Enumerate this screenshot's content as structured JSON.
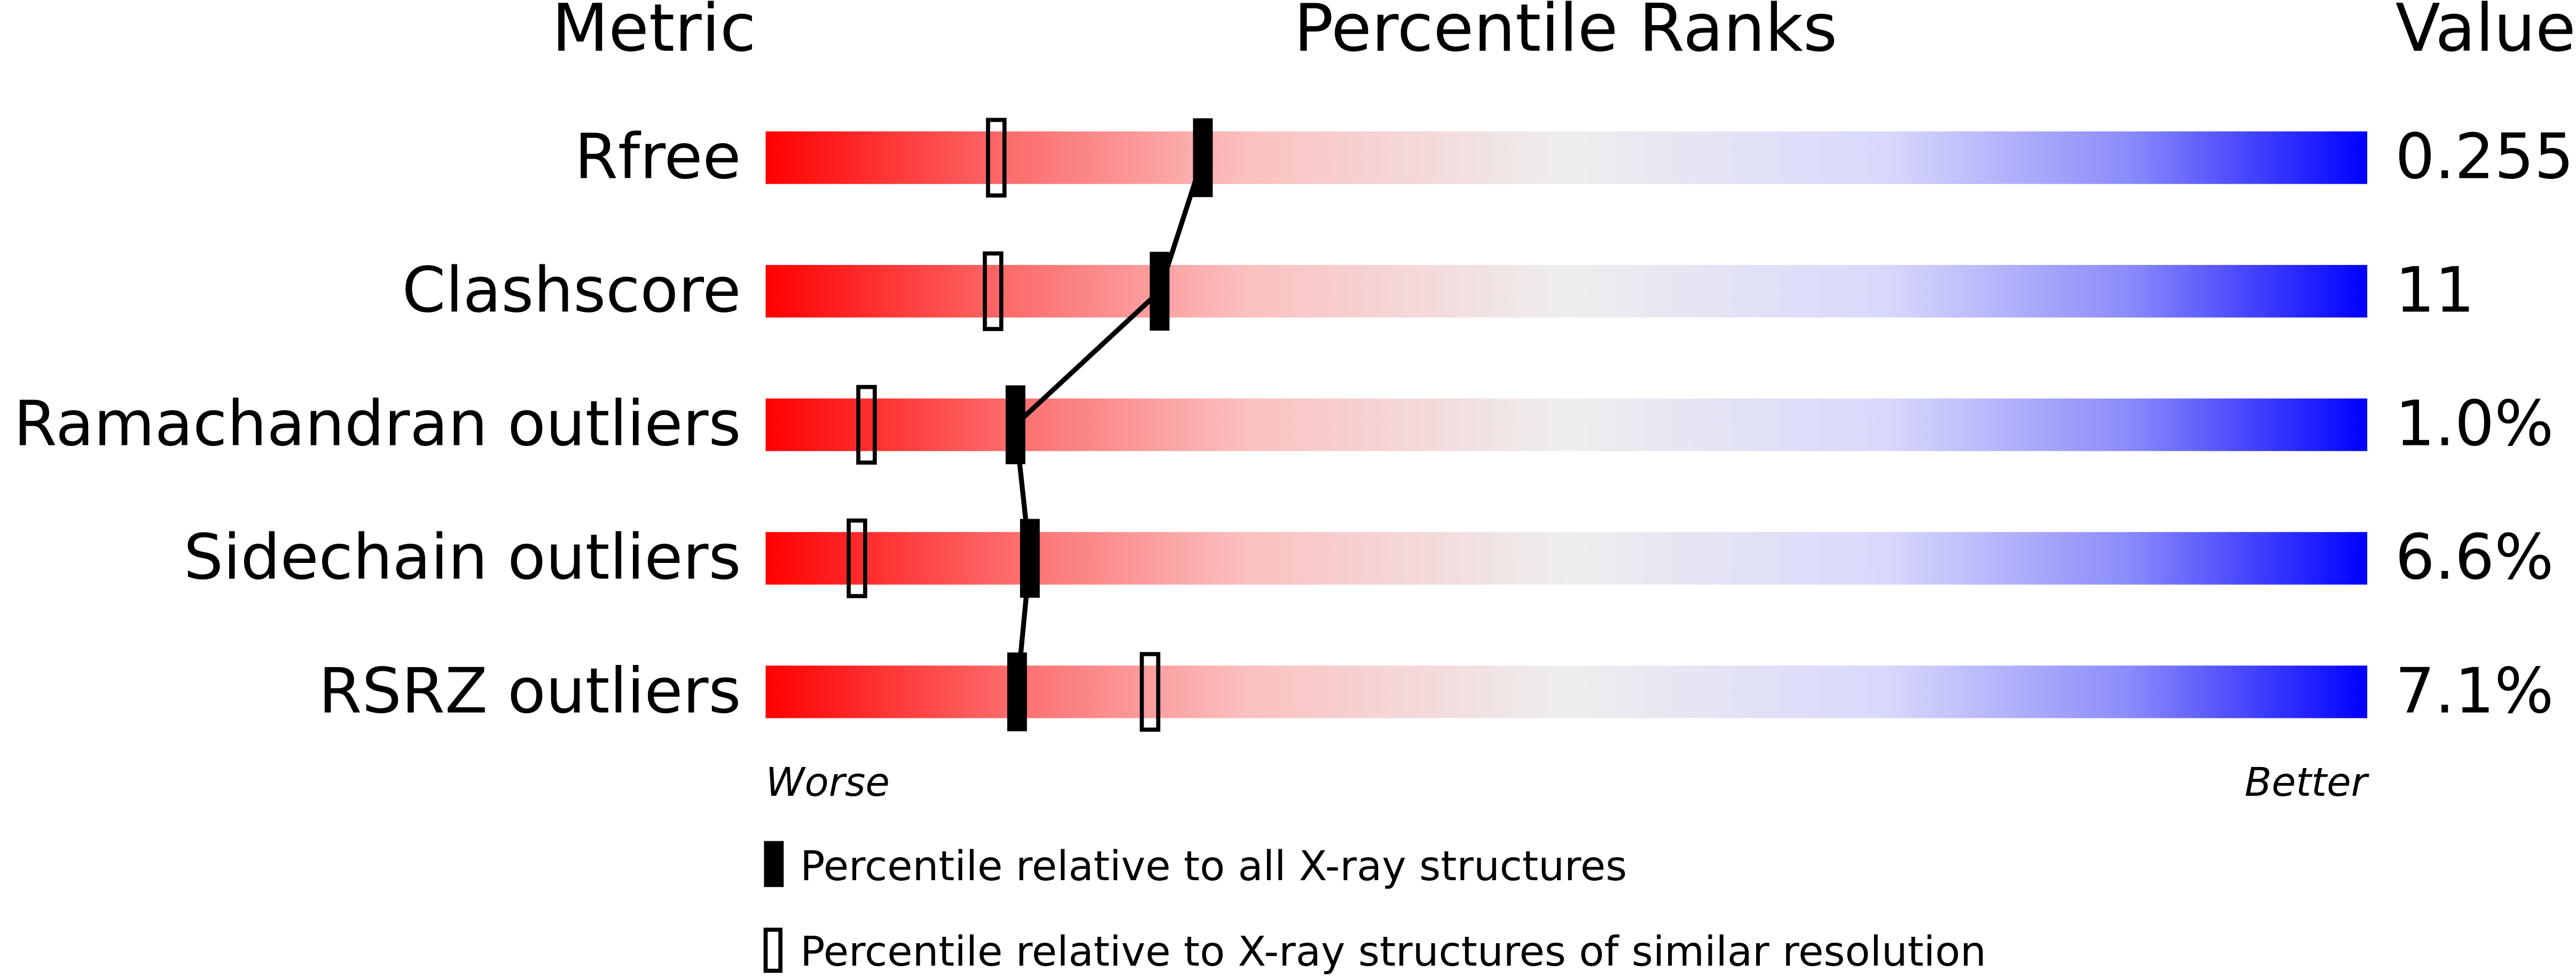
{
  "chart_data": {
    "type": "percentile",
    "header_metric": "Metric",
    "title": "Percentile Ranks",
    "header_value": "Value",
    "categories": [
      "Rfree",
      "Clashscore",
      "Ramachandran outliers",
      "Sidechain outliers",
      "RSRZ outliers"
    ],
    "metric_values": [
      "0.255",
      "11",
      "1.0%",
      "6.6%",
      "7.1%"
    ],
    "series": [
      {
        "name": "Percentile relative to all X-ray structures",
        "color": "#000000",
        "values": [
          27.3,
          24.6,
          15.6,
          16.5,
          15.7
        ]
      },
      {
        "name": "Percentile relative to X-ray structures of similar resolution",
        "color": "#000000",
        "values": [
          14.4,
          14.2,
          6.3,
          5.7,
          24.0
        ]
      }
    ],
    "xlim": [
      0,
      100
    ],
    "xlabel_left": "Worse",
    "xlabel_right": "Better"
  }
}
